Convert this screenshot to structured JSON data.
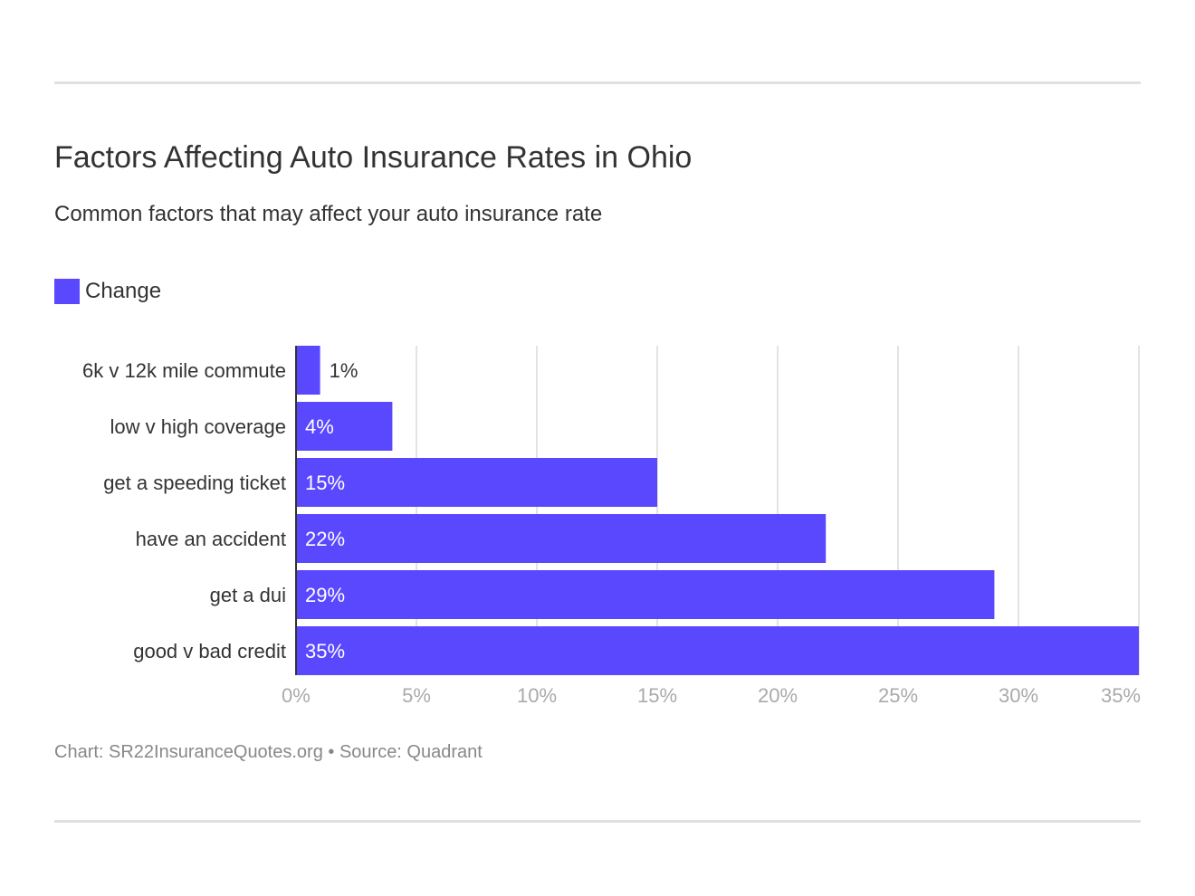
{
  "chart_data": {
    "type": "bar",
    "orientation": "horizontal",
    "title": "Factors Affecting Auto Insurance Rates in Ohio",
    "subtitle": "Common factors that may affect your auto insurance rate",
    "categories": [
      "6k v 12k mile commute",
      "low v high coverage",
      "get a speeding ticket",
      "have an accident",
      "get a dui",
      "good v bad credit"
    ],
    "series": [
      {
        "name": "Change",
        "values": [
          1,
          4,
          15,
          22,
          29,
          35
        ],
        "color": "#5a48fe"
      }
    ],
    "data_labels": [
      "1%",
      "4%",
      "15%",
      "22%",
      "29%",
      "35%"
    ],
    "xlim": [
      0,
      35
    ],
    "x_ticks": [
      0,
      5,
      10,
      15,
      20,
      25,
      30,
      35
    ],
    "x_tick_labels": [
      "0%",
      "5%",
      "10%",
      "15%",
      "20%",
      "25%",
      "30%",
      "35%"
    ],
    "grid": true,
    "legend_placement": "top-left"
  },
  "footer": "Chart: SR22InsuranceQuotes.org • Source: Quadrant"
}
